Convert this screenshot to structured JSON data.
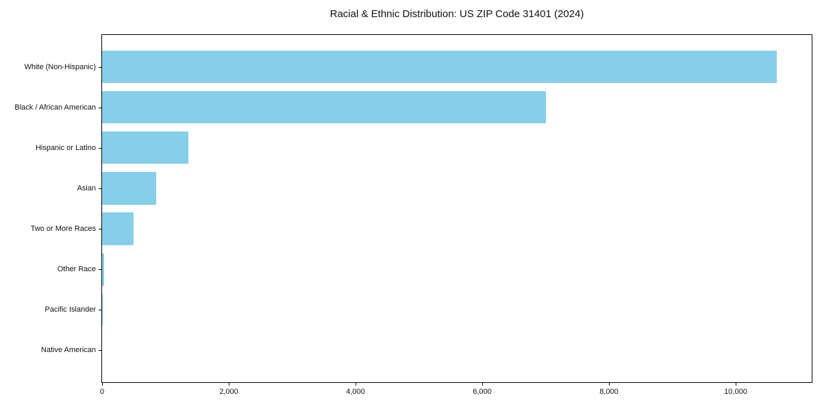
{
  "chart_data": {
    "type": "bar",
    "orientation": "horizontal",
    "title": "Racial & Ethnic Distribution: US ZIP Code 31401 (2024)",
    "categories": [
      "White (Non-Hispanic)",
      "Black / African American",
      "Hispanic or Latino",
      "Asian",
      "Two or More Races",
      "Other Race",
      "Pacific Islander",
      "Native American"
    ],
    "values": [
      10650,
      7000,
      1360,
      850,
      500,
      30,
      10,
      0
    ],
    "xlabel": "",
    "ylabel": "",
    "xlim": [
      0,
      11200
    ],
    "x_ticks": [
      0,
      2000,
      4000,
      6000,
      8000,
      10000
    ],
    "x_tick_labels": [
      "0",
      "2,000",
      "4,000",
      "6,000",
      "8,000",
      "10,000"
    ],
    "bar_color": "#87CEEB",
    "axis_color": "#000000",
    "background_color": "#ffffff",
    "grid": false
  }
}
